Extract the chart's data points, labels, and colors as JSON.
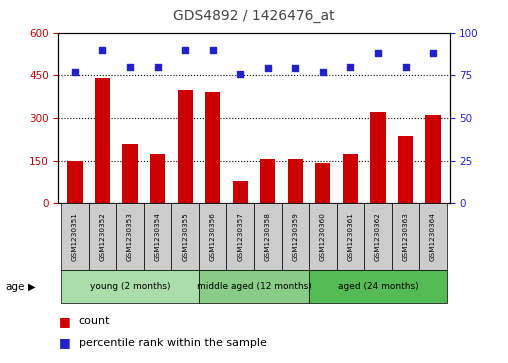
{
  "title": "GDS4892 / 1426476_at",
  "samples": [
    "GSM1230351",
    "GSM1230352",
    "GSM1230353",
    "GSM1230354",
    "GSM1230355",
    "GSM1230356",
    "GSM1230357",
    "GSM1230358",
    "GSM1230359",
    "GSM1230360",
    "GSM1230361",
    "GSM1230362",
    "GSM1230363",
    "GSM1230364"
  ],
  "counts": [
    150,
    440,
    210,
    175,
    400,
    390,
    80,
    155,
    155,
    140,
    175,
    320,
    235,
    310
  ],
  "percentile_ranks": [
    77,
    90,
    80,
    80,
    90,
    90,
    76,
    79,
    79,
    77,
    80,
    88,
    80,
    88
  ],
  "ylim_left": [
    0,
    600
  ],
  "ylim_right": [
    0,
    100
  ],
  "yticks_left": [
    0,
    150,
    300,
    450,
    600
  ],
  "yticks_right": [
    0,
    25,
    50,
    75,
    100
  ],
  "bar_color": "#cc0000",
  "dot_color": "#2222cc",
  "groups": [
    {
      "label": "young (2 months)",
      "start": 0,
      "end": 5,
      "color": "#aaddaa"
    },
    {
      "label": "middle aged (12 months)",
      "start": 5,
      "end": 9,
      "color": "#88cc88"
    },
    {
      "label": "aged (24 months)",
      "start": 9,
      "end": 14,
      "color": "#55bb55"
    }
  ],
  "legend_count_label": "count",
  "legend_percentile_label": "percentile rank within the sample",
  "title_color": "#444444",
  "left_axis_color": "#cc0000",
  "right_axis_color": "#2222cc",
  "bg_color": "#ffffff",
  "grid_color": "#000000",
  "box_color": "#cccccc"
}
